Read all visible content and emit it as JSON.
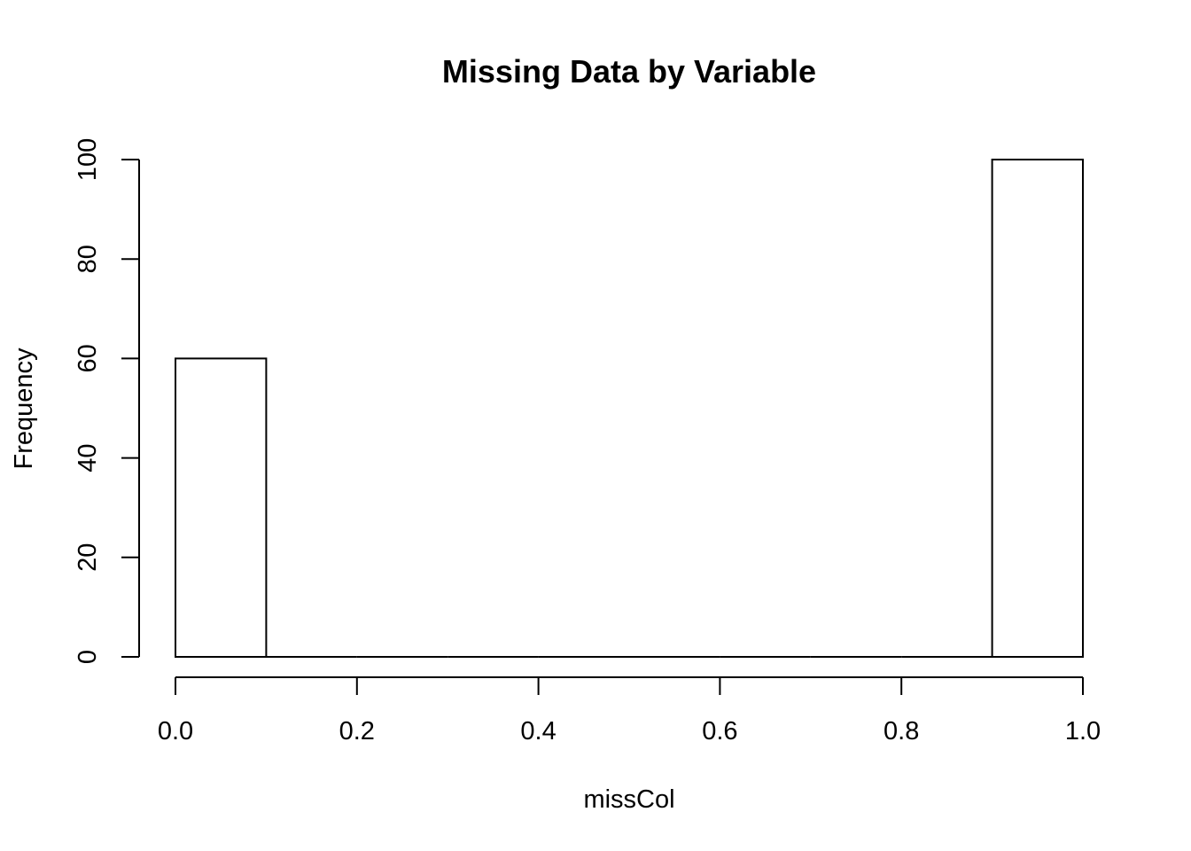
{
  "chart_data": {
    "type": "bar",
    "title": "Missing Data by Variable",
    "xlabel": "missCol",
    "ylabel": "Frequency",
    "xlim": [
      0,
      1
    ],
    "ylim": [
      0,
      100
    ],
    "x_ticks": [
      "0.0",
      "0.2",
      "0.4",
      "0.6",
      "0.8",
      "1.0"
    ],
    "y_ticks": [
      "0",
      "20",
      "40",
      "60",
      "80",
      "100"
    ],
    "bins": [
      {
        "from": 0.0,
        "to": 0.1,
        "count": 60
      },
      {
        "from": 0.1,
        "to": 0.2,
        "count": 0
      },
      {
        "from": 0.2,
        "to": 0.3,
        "count": 0
      },
      {
        "from": 0.3,
        "to": 0.4,
        "count": 0
      },
      {
        "from": 0.4,
        "to": 0.5,
        "count": 0
      },
      {
        "from": 0.5,
        "to": 0.6,
        "count": 0
      },
      {
        "from": 0.6,
        "to": 0.7,
        "count": 0
      },
      {
        "from": 0.7,
        "to": 0.8,
        "count": 0
      },
      {
        "from": 0.8,
        "to": 0.9,
        "count": 0
      },
      {
        "from": 0.9,
        "to": 1.0,
        "count": 100
      }
    ],
    "grid": false,
    "legend": "none"
  }
}
